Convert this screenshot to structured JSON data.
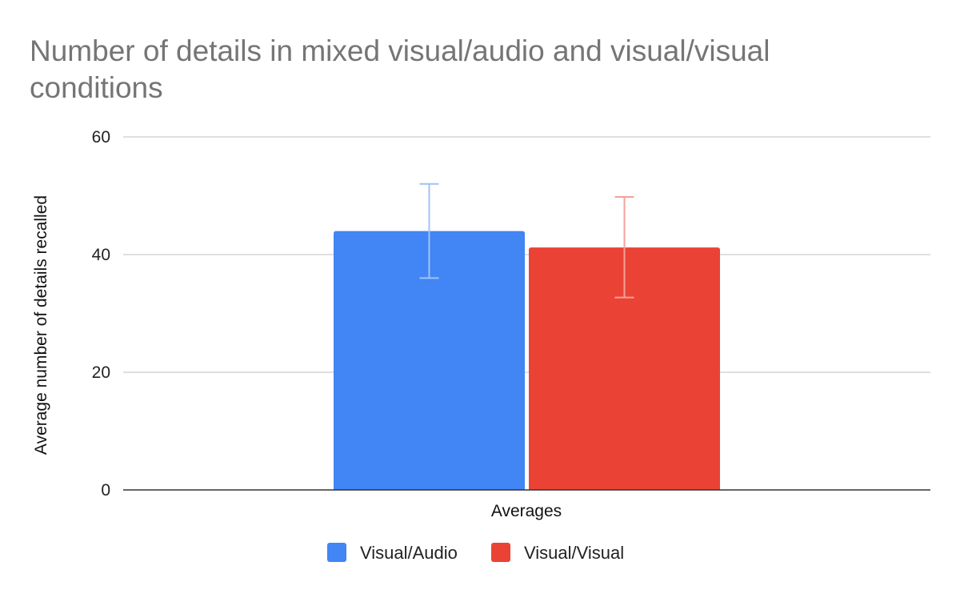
{
  "chart_data": {
    "type": "bar",
    "title": "Number of details in mixed visual/audio and visual/visual conditions",
    "title_lines": [
      "Number of details in mixed visual/audio and visual/visual",
      "conditions"
    ],
    "xlabel": "Averages",
    "ylabel": "Average number of details recalled",
    "categories": [
      "Averages"
    ],
    "ylim": [
      0,
      60
    ],
    "yticks": [
      0,
      20,
      40,
      60
    ],
    "grid": true,
    "legend": "bottom",
    "series": [
      {
        "name": "Visual/Audio",
        "values": [
          44
        ],
        "error_low": [
          36
        ],
        "error_high": [
          52
        ],
        "color": "#4285f4",
        "error_color": "#a0c2fa"
      },
      {
        "name": "Visual/Visual",
        "values": [
          41.2
        ],
        "error_low": [
          32.7
        ],
        "error_high": [
          49.8
        ],
        "color": "#ea4335",
        "error_color": "#f4a19a"
      }
    ]
  }
}
